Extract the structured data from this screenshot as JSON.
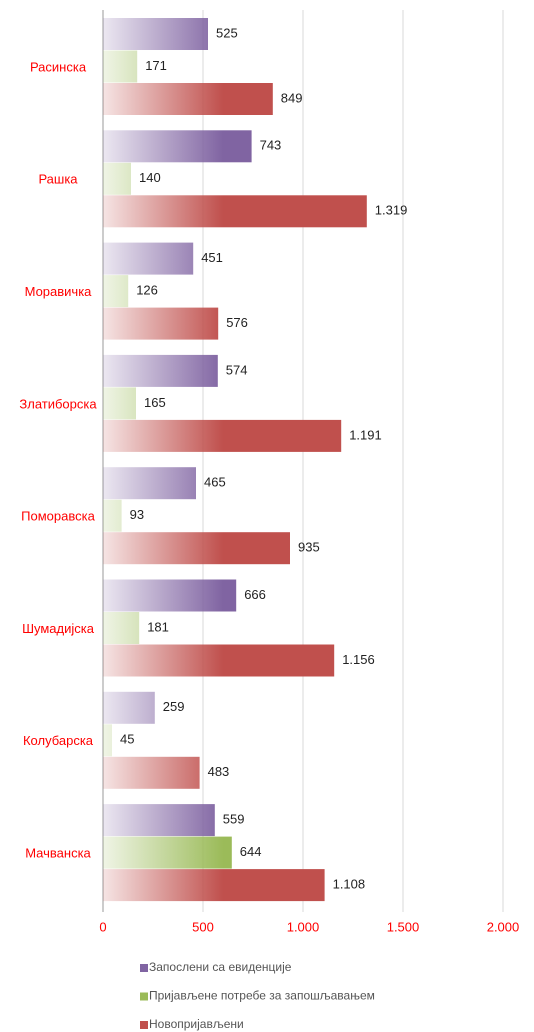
{
  "chart_data": {
    "type": "hbar",
    "categories": [
      "Расинска",
      "Рашка",
      "Моравичка",
      "Златиборска",
      "Поморавска",
      "Шумадијска",
      "Колубарска",
      "Мачванска"
    ],
    "series": [
      {
        "name": "Запослени са евиденције",
        "color": "#8064a2",
        "values": [
          525,
          743,
          451,
          574,
          465,
          666,
          259,
          559
        ],
        "value_labels": [
          "525",
          "743",
          "451",
          "574",
          "465",
          "666",
          "259",
          "559"
        ]
      },
      {
        "name": "Пријављене потребе за запошљавањем",
        "color": "#9bbb59",
        "values": [
          171,
          140,
          126,
          165,
          93,
          181,
          45,
          644
        ],
        "value_labels": [
          "171",
          "140",
          "126",
          "165",
          "93",
          "181",
          "45",
          "644"
        ]
      },
      {
        "name": "Новопријављени",
        "color": "#c0504d",
        "values": [
          849,
          1319,
          576,
          1191,
          935,
          1156,
          483,
          1108
        ],
        "value_labels": [
          "849",
          "1.319",
          "576",
          "1.191",
          "935",
          "1.156",
          "483",
          "1.108"
        ]
      }
    ],
    "xlim": [
      0,
      2000
    ],
    "xticks": [
      0,
      500,
      {
        "value": 1000,
        "label": "1.000"
      },
      {
        "value": 1500,
        "label": "1.500"
      },
      {
        "value": 2000,
        "label": "2.000"
      }
    ],
    "grid": true,
    "legend": "bottom",
    "category_color": "#ff0000",
    "tick_color": "#ff0000"
  }
}
